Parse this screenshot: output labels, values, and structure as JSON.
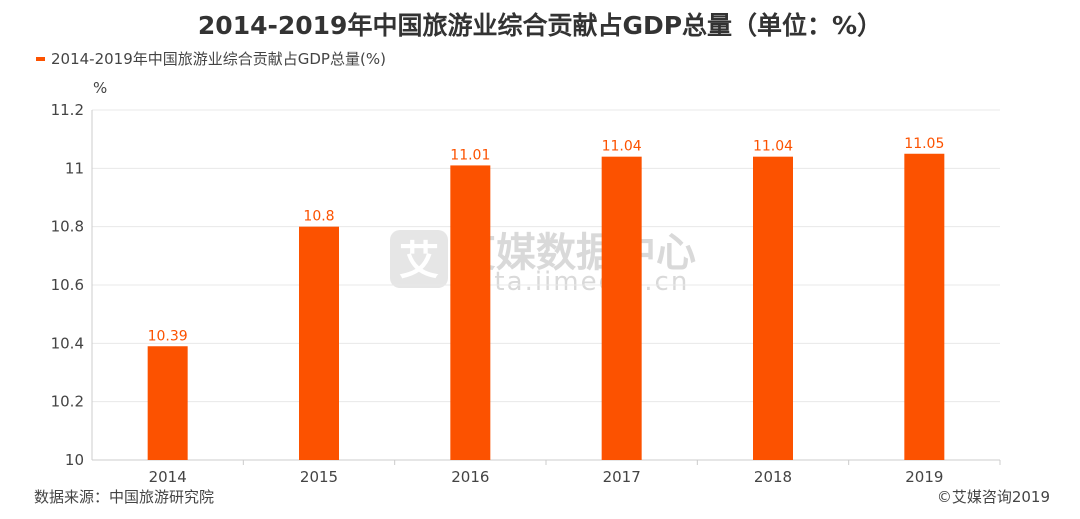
{
  "chart_data": {
    "type": "bar",
    "title": "2014-2019年中国旅游业综合贡献占GDP总量（单位：%）",
    "categories": [
      "2014",
      "2015",
      "2016",
      "2017",
      "2018",
      "2019"
    ],
    "series": [
      {
        "name": "2014-2019年中国旅游业综合贡献占GDP总量(%)",
        "values": [
          10.39,
          10.8,
          11.01,
          11.04,
          11.04,
          11.05
        ]
      }
    ],
    "ylabel": "%",
    "ylim": [
      10,
      11.2
    ],
    "yticks": [
      "10",
      "10.2",
      "10.4",
      "10.6",
      "10.8",
      "11",
      "11.2"
    ],
    "grid": true,
    "legend": "top-left"
  },
  "colors": {
    "bar": "#fc5200",
    "label": "#fc5200",
    "grid": "#e8e8e8",
    "axis": "#cccccc"
  },
  "watermark": {
    "brand": "艾媒数据中心",
    "site": "data.iimedia.cn",
    "logo_char": "艾"
  },
  "footer": {
    "source": "数据来源：中国旅游研究院",
    "copyright": "©艾媒咨询2019"
  }
}
